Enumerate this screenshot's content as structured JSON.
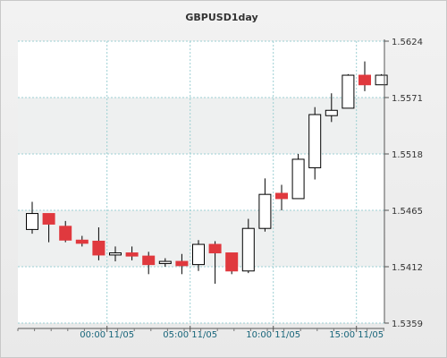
{
  "chart_data": {
    "type": "candlestick",
    "title": "GBPUSD1day",
    "ylim": [
      1.5359,
      1.5624
    ],
    "y_ticks": [
      "1.5624",
      "1.5571",
      "1.5518",
      "1.5465",
      "1.5412",
      "1.5359"
    ],
    "y_tick_values": [
      1.5624,
      1.5571,
      1.5518,
      1.5465,
      1.5412,
      1.5359
    ],
    "x_ticks": [
      "00:00 11/05",
      "05:00 11/05",
      "10:00 11/05",
      "15:00 11/05"
    ],
    "x_tick_index": [
      4.5,
      9.5,
      14.5,
      19.5
    ],
    "candles": [
      {
        "o": 1.5447,
        "h": 1.5473,
        "l": 1.5443,
        "c": 1.5462
      },
      {
        "o": 1.5462,
        "h": 1.5462,
        "l": 1.5435,
        "c": 1.5452
      },
      {
        "o": 1.545,
        "h": 1.5455,
        "l": 1.5435,
        "c": 1.5437
      },
      {
        "o": 1.5437,
        "h": 1.5441,
        "l": 1.5431,
        "c": 1.5434
      },
      {
        "o": 1.5436,
        "h": 1.5449,
        "l": 1.5418,
        "c": 1.5423
      },
      {
        "o": 1.5423,
        "h": 1.5431,
        "l": 1.5417,
        "c": 1.5425
      },
      {
        "o": 1.5425,
        "h": 1.5431,
        "l": 1.5418,
        "c": 1.5422
      },
      {
        "o": 1.5422,
        "h": 1.5426,
        "l": 1.5405,
        "c": 1.5414
      },
      {
        "o": 1.5415,
        "h": 1.542,
        "l": 1.5412,
        "c": 1.5417
      },
      {
        "o": 1.5417,
        "h": 1.5424,
        "l": 1.5405,
        "c": 1.5413
      },
      {
        "o": 1.5414,
        "h": 1.5437,
        "l": 1.5408,
        "c": 1.5433
      },
      {
        "o": 1.5433,
        "h": 1.5436,
        "l": 1.5396,
        "c": 1.5425
      },
      {
        "o": 1.5425,
        "h": 1.5425,
        "l": 1.5405,
        "c": 1.5408
      },
      {
        "o": 1.5408,
        "h": 1.5457,
        "l": 1.5406,
        "c": 1.5448
      },
      {
        "o": 1.5448,
        "h": 1.5495,
        "l": 1.5445,
        "c": 1.548
      },
      {
        "o": 1.5481,
        "h": 1.5489,
        "l": 1.5465,
        "c": 1.5476
      },
      {
        "o": 1.5476,
        "h": 1.5518,
        "l": 1.5476,
        "c": 1.5513
      },
      {
        "o": 1.5505,
        "h": 1.5562,
        "l": 1.5494,
        "c": 1.5555
      },
      {
        "o": 1.5554,
        "h": 1.5575,
        "l": 1.5548,
        "c": 1.5559
      },
      {
        "o": 1.5561,
        "h": 1.5593,
        "l": 1.5561,
        "c": 1.5592
      },
      {
        "o": 1.5592,
        "h": 1.5605,
        "l": 1.5577,
        "c": 1.5583
      },
      {
        "o": 1.5583,
        "h": 1.5593,
        "l": 1.5583,
        "c": 1.5592
      }
    ],
    "colors": {
      "up_body": "#ffffff",
      "down_body": "#e0393e",
      "candle_edge": "#000000",
      "grid": "#9ccfd3",
      "plot_bg": "#ffffff",
      "plot_band": "#eef0f0"
    }
  }
}
